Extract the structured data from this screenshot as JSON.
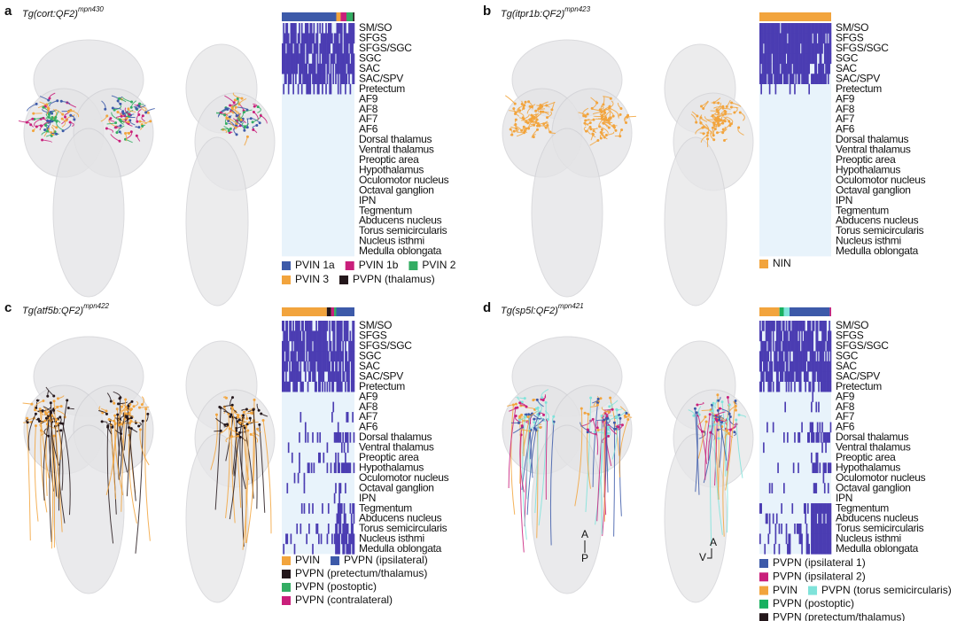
{
  "regions": [
    "SM/SO",
    "SFGS",
    "SFGS/SGC",
    "SGC",
    "SAC",
    "SAC/SPV",
    "Pretectum",
    "AF9",
    "AF8",
    "AF7",
    "AF6",
    "Dorsal thalamus",
    "Ventral thalamus",
    "Preoptic area",
    "Hypothalamus",
    "Oculomotor nucleus",
    "Octaval ganglion",
    "IPN",
    "Tegmentum",
    "Abducens nucleus",
    "Torus semicircularis",
    "Nucleus isthmi",
    "Medulla oblongata"
  ],
  "panels": [
    {
      "letter": "a",
      "title": "Tg(cort:QF2)",
      "superscript": "mpn430",
      "legend": [
        [
          {
            "label": "PVIN 1a",
            "color": "#3d5aa9"
          },
          {
            "label": "PVIN 1b",
            "color": "#c91f7b"
          },
          {
            "label": "PVIN 2",
            "color": "#33ad63"
          }
        ],
        [
          {
            "label": "PVIN 3",
            "color": "#f2a43d"
          },
          {
            "label": "PVPN (thalamus)",
            "color": "#24171b"
          }
        ]
      ]
    },
    {
      "letter": "b",
      "title": "Tg(itpr1b:QF2)",
      "superscript": "mpn423",
      "legend": [
        [
          {
            "label": "NIN",
            "color": "#f2a43d"
          }
        ]
      ]
    },
    {
      "letter": "c",
      "title": "Tg(atf5b:QF2)",
      "superscript": "mpn422",
      "legend": [
        [
          {
            "label": "PVIN",
            "color": "#f2a43d"
          },
          {
            "label": "PVPN (ipsilateral)",
            "color": "#3d5aa9"
          }
        ],
        [
          {
            "label": "PVPN (pretectum/thalamus)",
            "color": "#24171b"
          }
        ],
        [
          {
            "label": "PVPN (postoptic)",
            "color": "#33ad63"
          }
        ],
        [
          {
            "label": "PVPN (contralateral)",
            "color": "#c91f7b"
          }
        ]
      ]
    },
    {
      "letter": "d",
      "title": "Tg(sp5l:QF2)",
      "superscript": "mpn421",
      "legend": [
        [
          {
            "label": "PVPN (ipsilateral 1)",
            "color": "#3d5aa9"
          }
        ],
        [
          {
            "label": "PVPN (ipsilateral 2)",
            "color": "#c91f7b"
          }
        ],
        [
          {
            "label": "PVIN",
            "color": "#f2a43d"
          },
          {
            "label": "PVPN (torus semicircularis)",
            "color": "#7fe3da"
          }
        ],
        [
          {
            "label": "PVPN (postoptic)",
            "color": "#19b060"
          }
        ],
        [
          {
            "label": "PVPN (pretectum/thalamus)",
            "color": "#24171b"
          }
        ]
      ]
    }
  ],
  "orientation": {
    "dorsal": [
      "A",
      "P"
    ],
    "lateral": [
      "A",
      "V"
    ]
  }
}
